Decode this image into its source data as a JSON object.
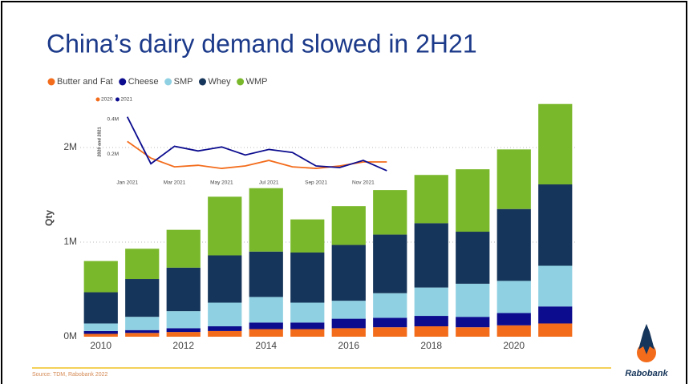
{
  "title": "China’s dairy demand slowed in 2H21",
  "source": "Source: TDM, Rabobank 2022",
  "logo": "Rabobank",
  "chart_data": [
    {
      "type": "stacked-bar",
      "y_label": "Qty",
      "x": [
        2010,
        2011,
        2012,
        2013,
        2014,
        2015,
        2016,
        2017,
        2018,
        2019,
        2020,
        2021
      ],
      "xlim": [
        2009.5,
        2021.5
      ],
      "xticks": [
        2010,
        2012,
        2014,
        2016,
        2018,
        2020
      ],
      "ylim": [
        0,
        2500000
      ],
      "yticks": [
        {
          "value": 0,
          "label": "0M"
        },
        {
          "value": 1000000,
          "label": "1M"
        },
        {
          "value": 2000000,
          "label": "2M"
        }
      ],
      "grid": true,
      "series": [
        {
          "name": "Butter and Fat",
          "color": "#f36c1c",
          "values": [
            30000,
            40000,
            50000,
            60000,
            80000,
            80000,
            90000,
            100000,
            110000,
            100000,
            120000,
            140000
          ]
        },
        {
          "name": "Cheese",
          "color": "#0c0c8f",
          "values": [
            30000,
            30000,
            40000,
            50000,
            70000,
            70000,
            100000,
            100000,
            110000,
            110000,
            130000,
            180000
          ]
        },
        {
          "name": "SMP",
          "color": "#8fd1e3",
          "values": [
            80000,
            140000,
            180000,
            250000,
            270000,
            210000,
            190000,
            260000,
            300000,
            350000,
            340000,
            430000
          ]
        },
        {
          "name": "Whey",
          "color": "#16355a",
          "values": [
            330000,
            400000,
            460000,
            500000,
            480000,
            530000,
            590000,
            620000,
            680000,
            550000,
            760000,
            860000
          ]
        },
        {
          "name": "WMP",
          "color": "#7ab82b",
          "values": [
            330000,
            320000,
            400000,
            620000,
            670000,
            350000,
            410000,
            470000,
            510000,
            660000,
            630000,
            850000
          ]
        }
      ]
    },
    {
      "type": "line",
      "y_label": "2020 and 2021",
      "categories": [
        "Jan 2021",
        null,
        "Mar 2021",
        null,
        "May 2021",
        null,
        "Jul 2021",
        null,
        "Sep 2021",
        null,
        "Nov 2021",
        null
      ],
      "ylim": [
        100000,
        440000
      ],
      "yticks": [
        {
          "value": 200000,
          "label": "0.2M"
        },
        {
          "value": 400000,
          "label": "0.4M"
        }
      ],
      "series": [
        {
          "name": "2020",
          "color": "#f36c1c",
          "values": [
            273000,
            177000,
            127000,
            136000,
            118000,
            132000,
            164000,
            127000,
            118000,
            132000,
            155000,
            155000
          ]
        },
        {
          "name": "2021",
          "color": "#0c0c8f",
          "values": [
            414000,
            145000,
            245000,
            218000,
            241000,
            195000,
            227000,
            209000,
            132000,
            123000,
            164000,
            105000
          ]
        }
      ]
    }
  ]
}
